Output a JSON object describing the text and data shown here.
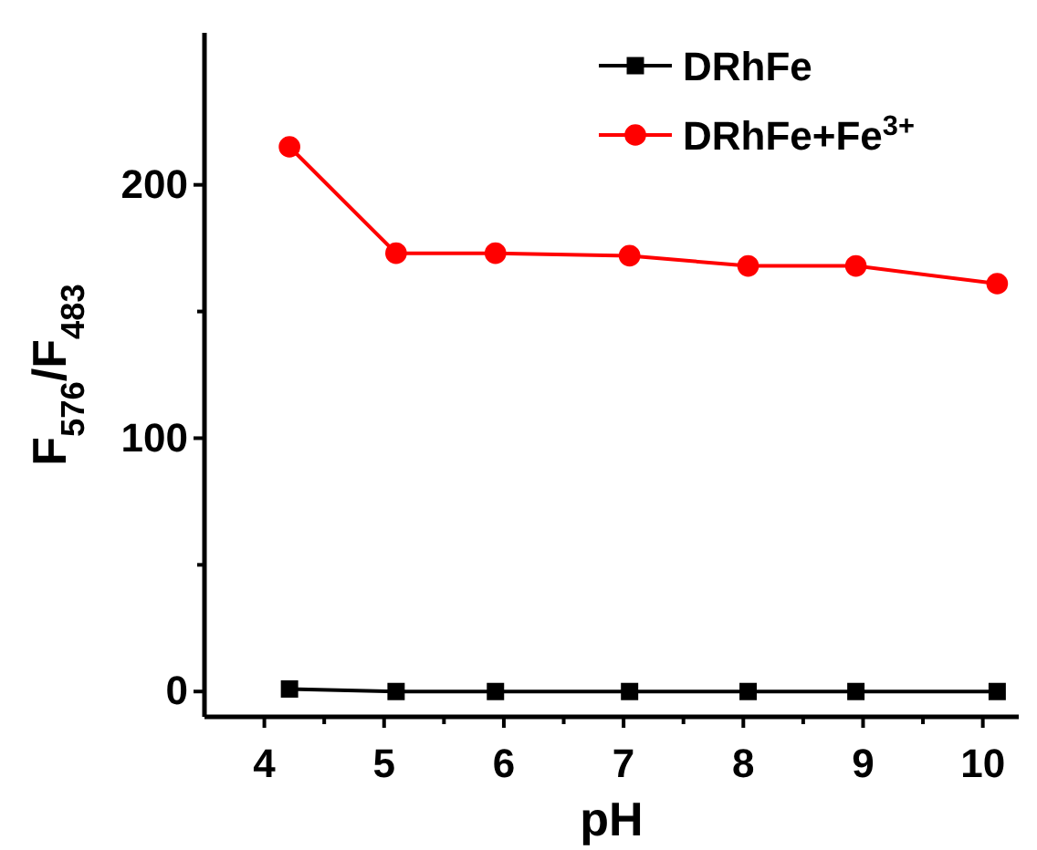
{
  "chart_data": {
    "type": "line",
    "xlabel": "pH",
    "ylabel": "F$_{576}$/F$_{483}$",
    "x": [
      4.21,
      5.1,
      5.93,
      7.05,
      8.04,
      8.94,
      10.12
    ],
    "xlim": [
      3.5,
      10.3
    ],
    "xticks": [
      4,
      5,
      6,
      7,
      8,
      9,
      10
    ],
    "ylim": [
      -10,
      260
    ],
    "yticks": [
      0,
      100,
      200
    ],
    "series": [
      {
        "name": "DRhFe",
        "color": "#000000",
        "marker": "square",
        "values": [
          1,
          0,
          0,
          0,
          0,
          0,
          0
        ]
      },
      {
        "name": "DRhFe+Fe$^{3+}$",
        "color": "#ff0000",
        "marker": "circle",
        "values": [
          215,
          173,
          173,
          172,
          168,
          168,
          161
        ]
      }
    ],
    "legend": "top right",
    "grid": false
  }
}
